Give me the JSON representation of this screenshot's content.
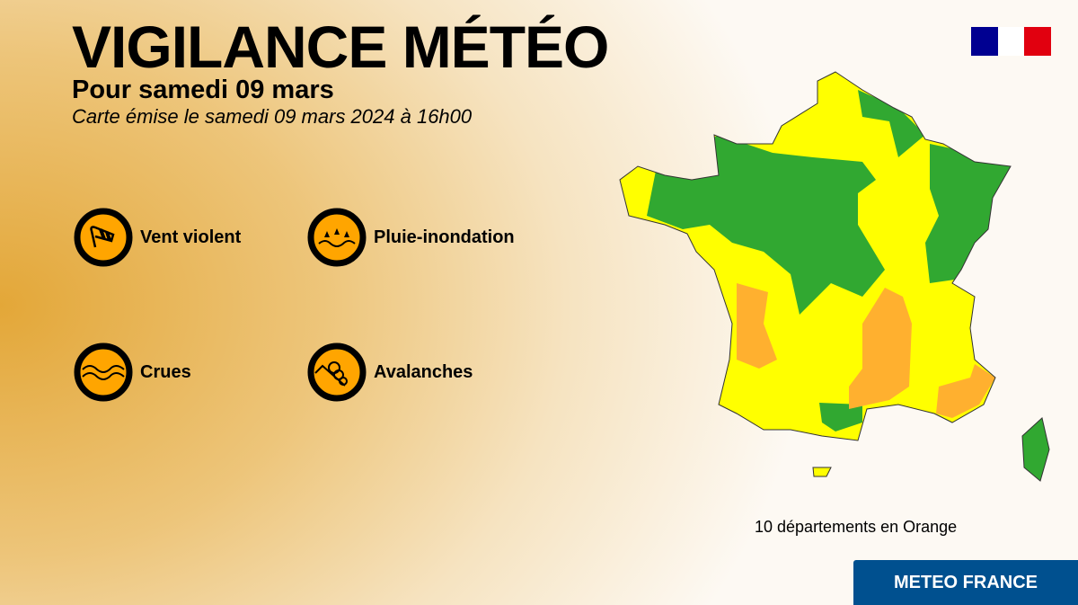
{
  "header": {
    "title": "VIGILANCE MÉTÉO",
    "subtitle": "Pour samedi 09 mars",
    "issued": "Carte émise le samedi 09 mars 2024 à 16h00"
  },
  "hazards": [
    {
      "label": "Vent violent",
      "icon": "windsock-icon"
    },
    {
      "label": "Pluie-inondation",
      "icon": "rain-flood-icon"
    },
    {
      "label": "Crues",
      "icon": "waves-icon"
    },
    {
      "label": "Avalanches",
      "icon": "avalanche-icon"
    }
  ],
  "colors": {
    "green": "#31a831",
    "yellow": "#ffff00",
    "orange": "#ffb02f",
    "icon_fill": "#ffa500",
    "footer": "#00508f"
  },
  "map": {
    "summary": "10 départements en Orange"
  },
  "footer": {
    "label": "METEO FRANCE"
  }
}
